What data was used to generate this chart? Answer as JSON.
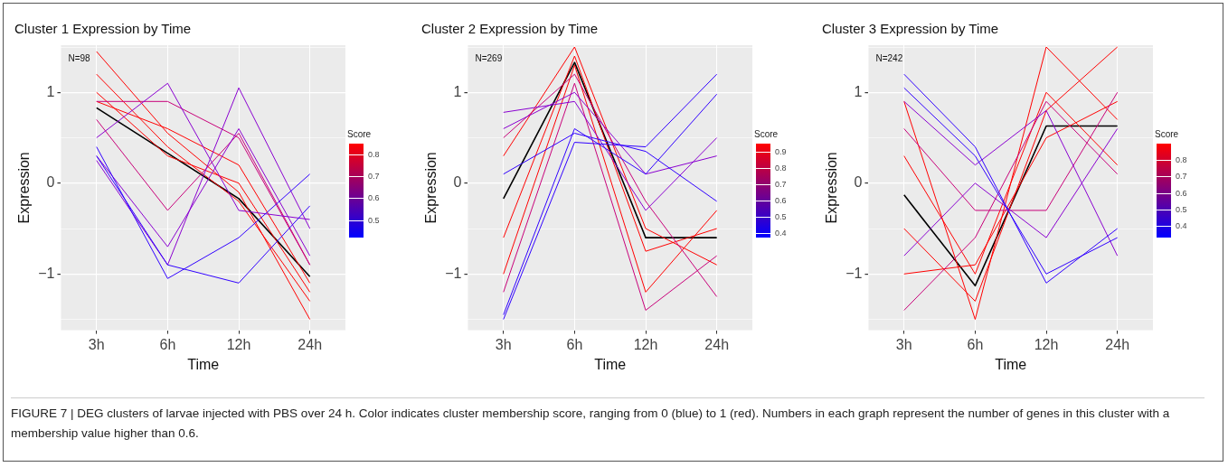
{
  "chart_data": [
    {
      "type": "line",
      "title": "Cluster 1 Expression by Time",
      "xlabel": "Time",
      "ylabel": "Expression",
      "clabel": "Score",
      "clim": [
        0.42,
        0.85
      ],
      "cticks": [
        0.5,
        0.6,
        0.7,
        0.8
      ],
      "annotations": [
        "N=98",
        "FIGURE 7 | DEG clusters of larvae injected with PBS over 24 h. Color indicates cluster membership score, ranging from 0 (blue) to 1 (red). Numbers in each graph represent the number of genes in this cluster with a membership value higher than 0.6."
      ],
      "categories": [
        "3h",
        "6h",
        "12h",
        "24h"
      ],
      "ylim": [
        -1.62,
        1.52
      ],
      "yticks": [
        {
          "value": -1.5,
          "label": null
        },
        -1,
        {
          "value": -0.5,
          "label": null
        },
        0,
        {
          "value": 0.5,
          "label": null
        },
        1,
        {
          "value": 1.5,
          "label": null
        }
      ],
      "grid": true,
      "marker": "none",
      "series": [
        {
          "color": "#3000ff",
          "values": [
            0.4,
            -1.05,
            -0.6,
            0.1
          ]
        },
        {
          "color": "#3000ff",
          "values": [
            0.3,
            -0.9,
            -1.1,
            -0.25
          ]
        },
        {
          "color": "#8a00d0",
          "values": [
            0.5,
            1.1,
            -0.3,
            -0.4
          ]
        },
        {
          "color": "#8a00d0",
          "values": [
            0.3,
            -0.7,
            0.6,
            -0.8
          ]
        },
        {
          "color": "#8a00d0",
          "values": [
            0.25,
            -0.9,
            1.05,
            -0.5
          ]
        },
        {
          "color": "#c8007a",
          "values": [
            0.9,
            0.9,
            0.5,
            -0.9
          ]
        },
        {
          "color": "#c8007a",
          "values": [
            0.7,
            -0.3,
            0.55,
            -0.9
          ]
        },
        {
          "color": "#ff0000",
          "values": [
            1.45,
            0.55,
            -0.1,
            -1.5
          ]
        },
        {
          "color": "#ff0000",
          "values": [
            1.2,
            0.4,
            -0.2,
            -1.3
          ]
        },
        {
          "color": "#ff0000",
          "values": [
            1.0,
            0.3,
            0.0,
            -1.2
          ]
        },
        {
          "color": "#ff0000",
          "values": [
            0.9,
            0.6,
            0.2,
            -1.1
          ]
        },
        {
          "color": "#000000",
          "values": [
            0.83,
            0.33,
            -0.17,
            -1.03
          ]
        }
      ]
    },
    {
      "type": "line",
      "title": "Cluster 2 Expression by Time",
      "xlabel": "Time",
      "ylabel": "Expression",
      "clabel": "Score",
      "clim": [
        0.37,
        0.95
      ],
      "cticks": [
        0.4,
        0.5,
        0.6,
        0.7,
        0.8,
        0.9
      ],
      "annotations": [
        "N=269"
      ],
      "categories": [
        "3h",
        "6h",
        "12h",
        "24h"
      ],
      "ylim": [
        -1.62,
        1.52
      ],
      "yticks": [
        {
          "value": -1.5,
          "label": null
        },
        -1,
        {
          "value": -0.5,
          "label": null
        },
        0,
        {
          "value": 0.5,
          "label": null
        },
        1,
        {
          "value": 1.5,
          "label": null
        }
      ],
      "grid": true,
      "marker": "none",
      "series": [
        {
          "color": "#3000ff",
          "values": [
            -1.5,
            0.45,
            0.4,
            1.2
          ]
        },
        {
          "color": "#3000ff",
          "values": [
            -1.45,
            0.6,
            0.1,
            0.98
          ]
        },
        {
          "color": "#3000ff",
          "values": [
            0.1,
            0.55,
            0.35,
            -0.2
          ]
        },
        {
          "color": "#8a00d0",
          "values": [
            0.6,
            1.0,
            0.1,
            0.3
          ]
        },
        {
          "color": "#8a00d0",
          "values": [
            0.78,
            0.9,
            -0.3,
            0.5
          ]
        },
        {
          "color": "#c8007a",
          "values": [
            0.5,
            1.2,
            -0.2,
            -1.25
          ]
        },
        {
          "color": "#c8007a",
          "values": [
            -1.2,
            1.1,
            -1.4,
            -0.8
          ]
        },
        {
          "color": "#ff0000",
          "values": [
            0.3,
            1.5,
            -0.5,
            -0.9
          ]
        },
        {
          "color": "#ff0000",
          "values": [
            -0.6,
            1.4,
            -0.75,
            -0.5
          ]
        },
        {
          "color": "#ff0000",
          "values": [
            -1.0,
            1.3,
            -1.2,
            -0.3
          ]
        },
        {
          "color": "#000000",
          "values": [
            -0.17,
            1.33,
            -0.6,
            -0.6
          ]
        }
      ]
    },
    {
      "type": "line",
      "title": "Cluster 3 Expression by Time",
      "xlabel": "Time",
      "ylabel": "Expression",
      "clabel": "Score",
      "clim": [
        0.33,
        0.9
      ],
      "cticks": [
        0.4,
        0.5,
        0.6,
        0.7,
        0.8
      ],
      "annotations": [
        "N=242"
      ],
      "categories": [
        "3h",
        "6h",
        "12h",
        "24h"
      ],
      "ylim": [
        -1.62,
        1.52
      ],
      "yticks": [
        {
          "value": -1.5,
          "label": null
        },
        -1,
        {
          "value": -0.5,
          "label": null
        },
        0,
        {
          "value": 0.5,
          "label": null
        },
        1,
        {
          "value": 1.5,
          "label": null
        }
      ],
      "grid": true,
      "marker": "none",
      "series": [
        {
          "color": "#3000ff",
          "values": [
            1.2,
            0.4,
            -1.1,
            -0.5
          ]
        },
        {
          "color": "#3000ff",
          "values": [
            1.05,
            0.3,
            -1.0,
            -0.6
          ]
        },
        {
          "color": "#8a00d0",
          "values": [
            -0.8,
            0.0,
            -0.6,
            0.6
          ]
        },
        {
          "color": "#8a00d0",
          "values": [
            0.9,
            0.2,
            0.8,
            -0.8
          ]
        },
        {
          "color": "#c8007a",
          "values": [
            -1.4,
            -0.6,
            0.9,
            0.1
          ]
        },
        {
          "color": "#c8007a",
          "values": [
            0.6,
            -0.3,
            -0.3,
            1.0
          ]
        },
        {
          "color": "#ff0000",
          "values": [
            0.9,
            -1.5,
            1.5,
            0.7
          ]
        },
        {
          "color": "#ff0000",
          "values": [
            -0.5,
            -1.3,
            0.8,
            1.5
          ]
        },
        {
          "color": "#ff0000",
          "values": [
            0.3,
            -1.0,
            1.0,
            0.2
          ]
        },
        {
          "color": "#ff0000",
          "values": [
            -1.0,
            -0.9,
            0.5,
            0.9
          ]
        },
        {
          "color": "#000000",
          "values": [
            -0.13,
            -1.13,
            0.63,
            0.63
          ]
        }
      ]
    }
  ]
}
